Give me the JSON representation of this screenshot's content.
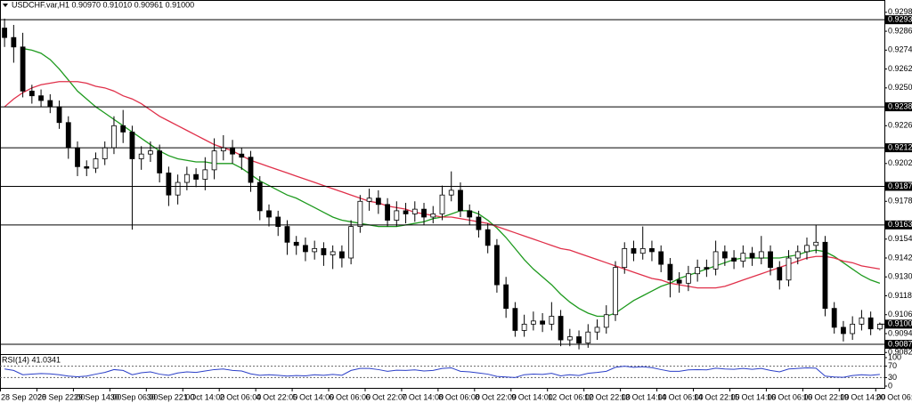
{
  "chart_data": [
    {
      "type": "candlestick",
      "title": "USDCHF.var,H1  0.90970 0.91010 0.90961 0.91000",
      "categories": [
        "28 Sep 2020",
        null,
        null,
        null,
        "28 Sep 22:00",
        null,
        null,
        null,
        "29 Sep 14:00",
        null,
        null,
        null,
        "30 Sep 06:00",
        null,
        null,
        null,
        "30 Sep 22:00",
        null,
        null,
        null,
        "1 Oct 14:00",
        null,
        null,
        null,
        "2 Oct 06:00",
        null,
        null,
        null,
        "4 Oct 22:00",
        null,
        null,
        null,
        "5 Oct 14:00",
        null,
        null,
        null,
        "6 Oct 06:00",
        null,
        null,
        null,
        "6 Oct 22:00",
        null,
        null,
        null,
        "7 Oct 14:00",
        null,
        null,
        null,
        "8 Oct 06:00",
        null,
        null,
        null,
        "8 Oct 22:00",
        null,
        null,
        null,
        "9 Oct 14:00",
        null,
        null,
        null,
        "12 Oct 06:00",
        null,
        null,
        null,
        "12 Oct 22:00",
        null,
        null,
        null,
        "13 Oct 14:00",
        null,
        null,
        null,
        "14 Oct 06:00",
        null,
        null,
        null,
        "14 Oct 22:00",
        null,
        null,
        null,
        "15 Oct 14:00",
        null,
        null,
        null,
        "16 Oct 06:00",
        null,
        null,
        null,
        "16 Oct 22:00",
        null,
        null,
        null,
        "19 Oct 14:00",
        null,
        null,
        null,
        "20 Oct 06:00"
      ],
      "open": [
        0.9288,
        0.9282,
        0.9276,
        0.9248,
        0.9245,
        0.9242,
        0.9238,
        0.9228,
        0.9212,
        0.92,
        0.9199,
        0.9205,
        0.9212,
        0.9226,
        0.9222,
        0.9205,
        0.9208,
        0.921,
        0.9196,
        0.9182,
        0.919,
        0.9195,
        0.9192,
        0.9198,
        0.921,
        0.9212,
        0.9208,
        0.9206,
        0.919,
        0.9172,
        0.9168,
        0.9162,
        0.9152,
        0.915,
        0.9146,
        0.9148,
        0.9144,
        0.9146,
        0.9142,
        0.9162,
        0.9178,
        0.918,
        0.9176,
        0.9166,
        0.9172,
        0.917,
        0.9173,
        0.9168,
        0.917,
        0.9182,
        0.9185,
        0.9172,
        0.9168,
        0.916,
        0.915,
        0.9125,
        0.911,
        0.9096,
        0.91,
        0.9102,
        0.91,
        0.9105,
        0.909,
        0.9092,
        0.9088,
        0.9095,
        0.9098,
        0.9106,
        0.9136,
        0.9148,
        0.9145,
        0.9148,
        0.9146,
        0.9138,
        0.9128,
        0.9126,
        0.9132,
        0.9136,
        0.9135,
        0.9146,
        0.9142,
        0.914,
        0.9145,
        0.9142,
        0.9146,
        0.9136,
        0.9128,
        0.9142,
        0.9146,
        0.915,
        0.9152,
        0.911,
        0.9098,
        0.9094,
        0.91,
        0.9104,
        0.9097
      ],
      "high": [
        0.9294,
        0.929,
        0.9285,
        0.9252,
        0.9249,
        0.9246,
        0.9242,
        0.9232,
        0.9216,
        0.9204,
        0.9209,
        0.9216,
        0.9232,
        0.9236,
        0.9226,
        0.9213,
        0.9216,
        0.9214,
        0.92,
        0.9195,
        0.92,
        0.9199,
        0.9206,
        0.9218,
        0.922,
        0.9217,
        0.9212,
        0.921,
        0.9194,
        0.9176,
        0.9172,
        0.9166,
        0.9156,
        0.9155,
        0.9153,
        0.9152,
        0.915,
        0.915,
        0.9166,
        0.9182,
        0.9186,
        0.9185,
        0.918,
        0.9178,
        0.9177,
        0.9178,
        0.9177,
        0.9175,
        0.9188,
        0.9197,
        0.919,
        0.9176,
        0.9172,
        0.9164,
        0.9154,
        0.913,
        0.9114,
        0.9106,
        0.9108,
        0.9107,
        0.9114,
        0.9109,
        0.9097,
        0.9096,
        0.91,
        0.9103,
        0.9112,
        0.914,
        0.9152,
        0.9153,
        0.9162,
        0.9153,
        0.915,
        0.9142,
        0.9133,
        0.9137,
        0.9141,
        0.9141,
        0.9153,
        0.915,
        0.9147,
        0.915,
        0.9149,
        0.9156,
        0.915,
        0.914,
        0.9147,
        0.915,
        0.9155,
        0.9163,
        0.9156,
        0.9114,
        0.9102,
        0.9105,
        0.9109,
        0.9108,
        0.9101
      ],
      "low": [
        0.9276,
        0.9266,
        0.9244,
        0.924,
        0.9238,
        0.9234,
        0.9224,
        0.9205,
        0.9194,
        0.9194,
        0.9196,
        0.9201,
        0.9208,
        0.9215,
        0.916,
        0.9198,
        0.9203,
        0.919,
        0.9175,
        0.9176,
        0.9185,
        0.9187,
        0.9185,
        0.9192,
        0.9204,
        0.9202,
        0.9198,
        0.9184,
        0.9166,
        0.9162,
        0.9156,
        0.9144,
        0.9144,
        0.914,
        0.9141,
        0.9137,
        0.9135,
        0.9136,
        0.9138,
        0.9158,
        0.9172,
        0.917,
        0.9162,
        0.9162,
        0.9164,
        0.9165,
        0.9163,
        0.9164,
        0.9166,
        0.9178,
        0.9168,
        0.9163,
        0.9155,
        0.9145,
        0.912,
        0.9104,
        0.9092,
        0.9092,
        0.9096,
        0.9095,
        0.9096,
        0.9086,
        0.9086,
        0.9084,
        0.9085,
        0.909,
        0.9094,
        0.9102,
        0.9132,
        0.914,
        0.9141,
        0.914,
        0.9133,
        0.9117,
        0.912,
        0.9121,
        0.9127,
        0.913,
        0.9131,
        0.9137,
        0.9135,
        0.9136,
        0.9137,
        0.9138,
        0.9131,
        0.9122,
        0.9124,
        0.9138,
        0.9141,
        0.9145,
        0.9105,
        0.9094,
        0.9089,
        0.909,
        0.9096,
        0.9093,
        0.9096
      ],
      "close": [
        0.9282,
        0.9276,
        0.9248,
        0.9245,
        0.9242,
        0.9238,
        0.9228,
        0.9212,
        0.92,
        0.9199,
        0.9205,
        0.9212,
        0.9226,
        0.9222,
        0.9205,
        0.9208,
        0.921,
        0.9196,
        0.9182,
        0.919,
        0.9195,
        0.9192,
        0.9198,
        0.921,
        0.9212,
        0.9208,
        0.9206,
        0.919,
        0.9172,
        0.9168,
        0.9162,
        0.9152,
        0.915,
        0.9146,
        0.9148,
        0.9144,
        0.9146,
        0.9142,
        0.9162,
        0.9178,
        0.918,
        0.9176,
        0.9166,
        0.9172,
        0.917,
        0.9173,
        0.9168,
        0.917,
        0.9182,
        0.9185,
        0.9172,
        0.9168,
        0.916,
        0.915,
        0.9125,
        0.911,
        0.9096,
        0.91,
        0.9102,
        0.91,
        0.9105,
        0.909,
        0.9092,
        0.9088,
        0.9095,
        0.9098,
        0.9106,
        0.9136,
        0.9148,
        0.9145,
        0.9148,
        0.9146,
        0.9138,
        0.9128,
        0.9126,
        0.9132,
        0.9136,
        0.9135,
        0.9146,
        0.9142,
        0.914,
        0.9145,
        0.9142,
        0.9146,
        0.9136,
        0.9128,
        0.9142,
        0.9146,
        0.915,
        0.9152,
        0.911,
        0.9098,
        0.9094,
        0.91,
        0.9104,
        0.9097,
        0.91
      ],
      "overlays": [
        {
          "color": "#1e9a1e",
          "values": [
            null,
            null,
            0.9275,
            0.9274,
            0.9272,
            0.9268,
            0.9262,
            0.9255,
            0.9248,
            0.9243,
            0.9238,
            0.9234,
            0.923,
            0.9226,
            0.9222,
            0.9218,
            0.9214,
            0.921,
            0.9207,
            0.9205,
            0.9204,
            0.9203,
            0.9203,
            0.9202,
            0.9202,
            0.9202,
            0.9199,
            0.9195,
            0.9191,
            0.9188,
            0.9185,
            0.9182,
            0.918,
            0.9177,
            0.9174,
            0.9171,
            0.9168,
            0.9166,
            0.9165,
            0.9164,
            0.9163,
            0.9162,
            0.9162,
            0.9162,
            0.9163,
            0.9164,
            0.9165,
            0.9167,
            0.9168,
            0.917,
            0.9172,
            0.9172,
            0.917,
            0.9166,
            0.9161,
            0.9155,
            0.9148,
            0.9141,
            0.9135,
            0.913,
            0.9125,
            0.9119,
            0.9114,
            0.911,
            0.9107,
            0.9105,
            0.9105,
            0.9107,
            0.9111,
            0.9115,
            0.9118,
            0.9121,
            0.9124,
            0.9126,
            0.9129,
            0.9131,
            0.9133,
            0.9135,
            0.9137,
            0.9139,
            0.9141,
            0.9142,
            0.9142,
            0.9142,
            0.9142,
            0.9142,
            0.9143,
            0.9144,
            0.9146,
            0.9147,
            0.9146,
            0.9143,
            0.9139,
            0.9135,
            0.9131,
            0.9128,
            0.9126
          ]
        },
        {
          "color": "#e0304a",
          "values": [
            0.9238,
            0.9243,
            0.9247,
            0.925,
            0.9252,
            0.9253,
            0.9254,
            0.9254,
            0.9254,
            0.9253,
            0.9251,
            0.925,
            0.9248,
            0.9245,
            0.9243,
            0.924,
            0.9236,
            0.9232,
            0.9229,
            0.9226,
            0.9223,
            0.922,
            0.9217,
            0.9214,
            0.9212,
            0.921,
            0.9207,
            0.9204,
            0.9202,
            0.92,
            0.9198,
            0.9196,
            0.9194,
            0.9192,
            0.919,
            0.9188,
            0.9186,
            0.9184,
            0.9182,
            0.918,
            0.9178,
            0.9177,
            0.9175,
            0.9174,
            0.9173,
            0.9171,
            0.917,
            0.9169,
            0.9168,
            0.9168,
            0.9167,
            0.9166,
            0.9165,
            0.9164,
            0.9162,
            0.916,
            0.9158,
            0.9156,
            0.9154,
            0.9152,
            0.915,
            0.9148,
            0.9147,
            0.9145,
            0.9143,
            0.9141,
            0.9139,
            0.9137,
            0.9135,
            0.9133,
            0.9131,
            0.9129,
            0.9128,
            0.9126,
            0.9125,
            0.9124,
            0.9123,
            0.9123,
            0.9123,
            0.9124,
            0.9126,
            0.9128,
            0.913,
            0.9132,
            0.9134,
            0.9136,
            0.9138,
            0.914,
            0.9142,
            0.9143,
            0.9143,
            0.9142,
            0.914,
            0.9139,
            0.9137,
            0.9136,
            0.9135
          ]
        }
      ],
      "levels": [
        0.92933,
        {
          "value": 0.9238,
          "label": "0.92380"
        },
        {
          "value": 0.9212,
          "label": "0.92120"
        },
        0.91875,
        {
          "value": 0.9163,
          "label": "0.91630"
        },
        0.90872
      ],
      "current_price": {
        "value": 0.91,
        "label": "0.91000"
      },
      "ylim": [
        0.9081,
        0.9303
      ],
      "yticks": [
        {
          "value": 0.9298,
          "label": "0.92980"
        },
        {
          "value": 0.9286,
          "label": "0.92860"
        },
        {
          "value": 0.9274,
          "label": "0.92740"
        },
        {
          "value": 0.9262,
          "label": "0.92620"
        },
        {
          "value": 0.925,
          "label": "0.92500"
        },
        {
          "value": 0.9226,
          "label": "0.92260"
        },
        {
          "value": 0.9202,
          "label": "0.92020"
        },
        {
          "value": 0.9178,
          "label": "0.91780"
        },
        {
          "value": 0.9154,
          "label": "0.91540"
        },
        {
          "value": 0.9142,
          "label": "0.91420"
        },
        {
          "value": 0.913,
          "label": "0.91300"
        },
        {
          "value": 0.9118,
          "label": "0.91180"
        },
        {
          "value": 0.9106,
          "label": "0.91060"
        },
        {
          "value": 0.9094,
          "label": "0.90940"
        },
        {
          "value": 0.9082,
          "label": "0.90820"
        }
      ]
    },
    {
      "type": "line",
      "title": "RSI(14) 41.0341",
      "color": "#2b3fc8",
      "values": [
        60,
        55,
        40,
        42,
        44,
        43,
        40,
        35,
        33,
        35,
        42,
        48,
        58,
        55,
        40,
        47,
        50,
        42,
        38,
        46,
        50,
        48,
        53,
        58,
        60,
        55,
        53,
        43,
        38,
        40,
        38,
        35,
        37,
        36,
        40,
        38,
        41,
        38,
        55,
        62,
        62,
        58,
        52,
        56,
        55,
        57,
        53,
        55,
        62,
        64,
        52,
        50,
        46,
        42,
        34,
        32,
        30,
        40,
        42,
        41,
        45,
        36,
        40,
        37,
        45,
        48,
        52,
        66,
        70,
        66,
        68,
        65,
        58,
        52,
        52,
        57,
        58,
        57,
        63,
        60,
        59,
        62,
        59,
        62,
        55,
        50,
        60,
        62,
        64,
        63,
        35,
        32,
        31,
        37,
        40,
        38,
        41
      ],
      "levels": [
        70,
        30
      ],
      "ylim": [
        0,
        100
      ],
      "yticks": [
        100,
        70,
        30,
        0
      ]
    }
  ]
}
